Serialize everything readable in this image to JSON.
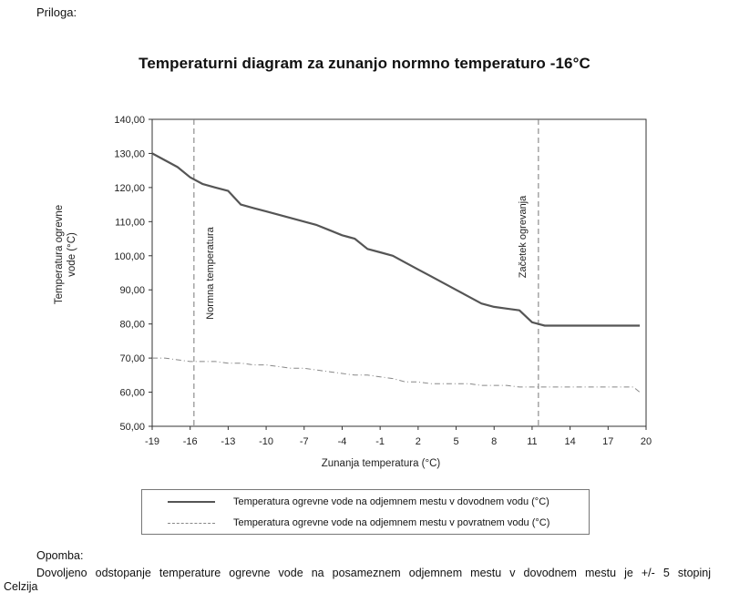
{
  "header": {
    "attachment_label": "Priloga:"
  },
  "chart_data": {
    "type": "line",
    "title": "Temperaturni diagram za zunanjo normno temperaturo -16°C",
    "xlabel": "Zunanja temperatura (°C)",
    "ylabel": "Temperatura ogrevne vode (°C)",
    "xlim": [
      -19,
      20
    ],
    "ylim": [
      50,
      140
    ],
    "xticks": [
      -19,
      -16,
      -13,
      -10,
      -7,
      -4,
      -1,
      2,
      5,
      8,
      11,
      14,
      17,
      20
    ],
    "xtick_labels": [
      "-19",
      "-16",
      "-13",
      "-10",
      "-7",
      "-4",
      "-1",
      "2",
      "5",
      "8",
      "11",
      "14",
      "17",
      "20"
    ],
    "yticks": [
      50,
      60,
      70,
      80,
      90,
      100,
      110,
      120,
      130,
      140
    ],
    "ytick_labels": [
      "50,00",
      "60,00",
      "70,00",
      "80,00",
      "90,00",
      "100,00",
      "110,00",
      "120,00",
      "130,00",
      "140,00"
    ],
    "grid": "vertical",
    "legend_position": "bottom",
    "series": [
      {
        "name": "Temperatura ogrevne vode na odjemnem mestu v dovodnem vodu (°C)",
        "color": "#555555",
        "style": "solid",
        "x": [
          -19,
          -18,
          -17,
          -16,
          -15,
          -14,
          -13,
          -12,
          -11,
          -10,
          -9,
          -8,
          -7,
          -6,
          -5,
          -4,
          -3,
          -2,
          -1,
          0,
          1,
          2,
          3,
          4,
          5,
          6,
          7,
          8,
          9,
          10,
          11,
          11.5,
          12,
          13,
          14,
          15,
          16,
          17,
          18,
          19,
          19.5
        ],
        "y": [
          130,
          128,
          126,
          123,
          121,
          120,
          119,
          115,
          114,
          113,
          112,
          111,
          110,
          109,
          107.5,
          106,
          105,
          102,
          101,
          100,
          98,
          96,
          94,
          92,
          90,
          88,
          86,
          85,
          84.5,
          84,
          80.5,
          80,
          79.5,
          79.5,
          79.5,
          79.5,
          79.5,
          79.5,
          79.5,
          79.5,
          79.5
        ]
      },
      {
        "name": "Temperatura ogrevne vode na odjemnem mestu v povratnem vodu (°C)",
        "color": "#888888",
        "style": "dashdot",
        "x": [
          -19,
          -18,
          -17,
          -16,
          -15,
          -14,
          -13,
          -12,
          -11,
          -10,
          -9,
          -8,
          -7,
          -6,
          -5,
          -4,
          -3,
          -2,
          -1,
          0,
          1,
          2,
          3,
          4,
          5,
          6,
          7,
          8,
          9,
          10,
          11,
          12,
          13,
          14,
          15,
          16,
          17,
          18,
          19,
          19.5
        ],
        "y": [
          70,
          70,
          69.5,
          69,
          69,
          69,
          68.5,
          68.5,
          68,
          68,
          67.5,
          67,
          67,
          66.5,
          66,
          65.5,
          65,
          65,
          64.5,
          64,
          63,
          63,
          62.5,
          62.5,
          62.5,
          62.5,
          62,
          62,
          62,
          61.5,
          61.5,
          61.5,
          61.5,
          61.5,
          61.5,
          61.5,
          61.5,
          61.5,
          61.5,
          60
        ]
      }
    ],
    "annotations": [
      {
        "text": "Normna  temperatura",
        "x": -15.7
      },
      {
        "text": "Začetek ogrevanja",
        "x": 11.5
      }
    ]
  },
  "note": {
    "label": "Opomba:",
    "text_line1": "Dovoljeno odstopanje temperature ogrevne vode na posameznem odjemnem mestu v dovodnem mestu je +/- 5 stopinj",
    "text_line2": "Celzija"
  }
}
